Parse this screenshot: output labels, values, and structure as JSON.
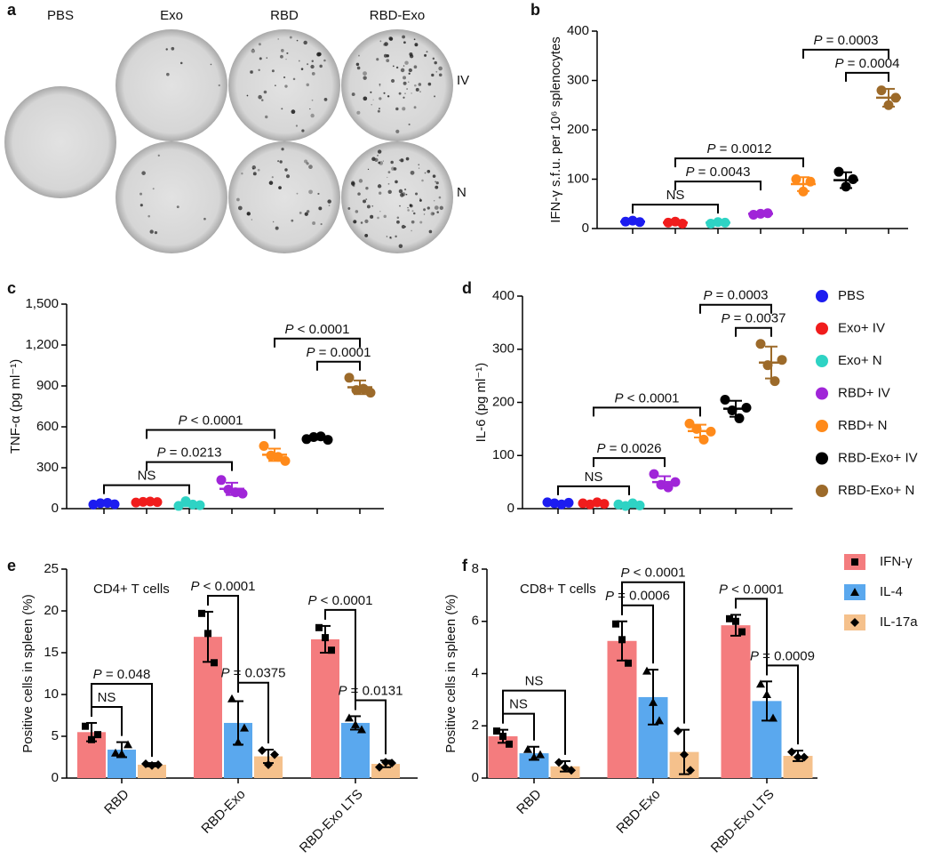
{
  "chart_data": [
    {
      "type": "image-grid",
      "panel_label": "a",
      "columns": [
        "PBS",
        "Exo",
        "RBD",
        "RBD-Exo"
      ],
      "rows": [
        "IV",
        "N"
      ]
    },
    {
      "type": "scatter",
      "panel_label": "b",
      "y_label": "IFN-γ s.f.u. per 10⁶ splenocytes",
      "ylim": [
        0,
        400
      ],
      "yticks": [
        0,
        100,
        200,
        300,
        400
      ],
      "series": [
        {
          "values": [
            14,
            16,
            13
          ],
          "mean": 14,
          "error": 2
        },
        {
          "values": [
            12,
            14,
            10
          ],
          "mean": 12,
          "error": 2
        },
        {
          "values": [
            10,
            13,
            12
          ],
          "mean": 12,
          "error": 2
        },
        {
          "values": [
            28,
            30,
            31
          ],
          "mean": 30,
          "error": 2
        },
        {
          "values": [
            100,
            75,
            95
          ],
          "mean": 90,
          "error": 14
        },
        {
          "values": [
            115,
            85,
            100
          ],
          "mean": 98,
          "error": 16
        },
        {
          "values": [
            280,
            250,
            265
          ],
          "mean": 265,
          "error": 18
        }
      ],
      "comparisons": [
        {
          "groups": [
            0,
            2
          ],
          "label": "NS"
        },
        {
          "groups": [
            1,
            3
          ],
          "label": "P = 0.0043"
        },
        {
          "groups": [
            1,
            4
          ],
          "label": "P = 0.0012"
        },
        {
          "groups": [
            4,
            6
          ],
          "label": "P = 0.0003"
        },
        {
          "groups": [
            5,
            6
          ],
          "label": "P = 0.0004"
        }
      ]
    },
    {
      "type": "scatter",
      "panel_label": "c",
      "y_label": "TNF-α (pg ml⁻¹)",
      "ylim": [
        0,
        1500
      ],
      "yticks": [
        0,
        300,
        600,
        900,
        {
          "value": 1200,
          "label": "1,200"
        },
        {
          "value": 1500,
          "label": "1,500"
        }
      ],
      "series": [
        {
          "values": [
            30,
            40,
            42,
            32
          ],
          "mean": 37,
          "error": 6
        },
        {
          "values": [
            45,
            50,
            52,
            48
          ],
          "mean": 49,
          "error": 3
        },
        {
          "values": [
            20,
            55,
            30,
            25
          ],
          "mean": 33,
          "error": 15
        },
        {
          "values": [
            210,
            140,
            120,
            110
          ],
          "mean": 145,
          "error": 45
        },
        {
          "values": [
            460,
            390,
            380,
            350
          ],
          "mean": 395,
          "error": 45
        },
        {
          "values": [
            510,
            525,
            530,
            505
          ],
          "mean": 518,
          "error": 12
        },
        {
          "values": [
            960,
            870,
            880,
            850
          ],
          "mean": 890,
          "error": 50
        }
      ],
      "comparisons": [
        {
          "groups": [
            0,
            2
          ],
          "label": "NS"
        },
        {
          "groups": [
            1,
            3
          ],
          "label": "P = 0.0213"
        },
        {
          "groups": [
            1,
            4
          ],
          "label": "P < 0.0001"
        },
        {
          "groups": [
            4,
            6
          ],
          "label": "P < 0.0001"
        },
        {
          "groups": [
            5,
            6
          ],
          "label": "P = 0.0001"
        }
      ]
    },
    {
      "type": "scatter",
      "panel_label": "d",
      "y_label": "IL-6 (pg ml⁻¹)",
      "ylim": [
        0,
        400
      ],
      "yticks": [
        0,
        100,
        200,
        300,
        400
      ],
      "series": [
        {
          "values": [
            12,
            10,
            8,
            11
          ],
          "mean": 10,
          "error": 2
        },
        {
          "values": [
            10,
            8,
            12,
            9
          ],
          "mean": 10,
          "error": 2
        },
        {
          "values": [
            8,
            5,
            10,
            6
          ],
          "mean": 8,
          "error": 2
        },
        {
          "values": [
            65,
            45,
            40,
            50
          ],
          "mean": 50,
          "error": 11
        },
        {
          "values": [
            160,
            150,
            130,
            145
          ],
          "mean": 146,
          "error": 12
        },
        {
          "values": [
            205,
            185,
            170,
            190
          ],
          "mean": 188,
          "error": 15
        },
        {
          "values": [
            310,
            270,
            240,
            280
          ],
          "mean": 275,
          "error": 30
        }
      ],
      "comparisons": [
        {
          "groups": [
            0,
            2
          ],
          "label": "NS"
        },
        {
          "groups": [
            1,
            3
          ],
          "label": "P = 0.0026"
        },
        {
          "groups": [
            1,
            4
          ],
          "label": "P < 0.0001"
        },
        {
          "groups": [
            4,
            6
          ],
          "label": "P = 0.0003"
        },
        {
          "groups": [
            5,
            6
          ],
          "label": "P = 0.0037"
        }
      ]
    },
    {
      "type": "bar",
      "panel_label": "e",
      "title": "CD4+ T cells",
      "y_label": "Positive cells in spleen (%)",
      "categories": [
        "RBD",
        "RBD-Exo",
        "RBD-Exo LTS"
      ],
      "ylim": [
        0,
        25
      ],
      "yticks": [
        0,
        5,
        10,
        15,
        20,
        25
      ],
      "series": [
        {
          "values": [
            5.5,
            16.9,
            16.6
          ],
          "errors": [
            1.1,
            3.0,
            1.6
          ],
          "points": [
            [
              6.2,
              4.6,
              5.2
            ],
            [
              19.7,
              17.3,
              13.8
            ],
            [
              18.0,
              16.8,
              15.3
            ]
          ]
        },
        {
          "values": [
            3.4,
            6.6,
            6.6
          ],
          "errors": [
            0.9,
            2.6,
            0.8
          ],
          "points": [
            [
              3.0,
              2.9,
              4.0
            ],
            [
              9.5,
              4.3,
              6.0
            ],
            [
              7.2,
              6.4,
              5.8
            ]
          ]
        },
        {
          "values": [
            1.6,
            2.6,
            1.7
          ],
          "errors": [
            0.2,
            0.8,
            0.4
          ],
          "points": [
            [
              1.7,
              1.5,
              1.6
            ],
            [
              3.3,
              1.6,
              2.8
            ],
            [
              1.3,
              1.9,
              1.8
            ]
          ]
        }
      ],
      "comparisons": [
        {
          "category": 0,
          "series": [
            0,
            1
          ],
          "label": "NS"
        },
        {
          "category": 0,
          "series": [
            0,
            2
          ],
          "label": "P = 0.048"
        },
        {
          "category": 1,
          "series": [
            0,
            1
          ],
          "label": "P < 0.0001"
        },
        {
          "category": 1,
          "series": [
            1,
            2
          ],
          "label": "P = 0.0375"
        },
        {
          "category": 2,
          "series": [
            0,
            1
          ],
          "label": "P < 0.0001"
        },
        {
          "category": 2,
          "series": [
            1,
            2
          ],
          "label": "P = 0.0131"
        }
      ]
    },
    {
      "type": "bar",
      "panel_label": "f",
      "title": "CD8+ T cells",
      "y_label": "Positive cells in spleen (%)",
      "categories": [
        "RBD",
        "RBD-Exo",
        "RBD-Exo LTS"
      ],
      "ylim": [
        0,
        8
      ],
      "yticks": [
        0,
        2,
        4,
        6,
        8
      ],
      "series": [
        {
          "values": [
            1.6,
            5.25,
            5.85
          ],
          "errors": [
            0.25,
            0.75,
            0.4
          ],
          "points": [
            [
              1.8,
              1.6,
              1.3
            ],
            [
              5.9,
              5.3,
              4.4
            ],
            [
              6.1,
              6.0,
              5.6
            ]
          ]
        },
        {
          "values": [
            0.95,
            3.1,
            2.95
          ],
          "errors": [
            0.25,
            1.05,
            0.75
          ],
          "points": [
            [
              1.1,
              0.8,
              0.9
            ],
            [
              4.1,
              2.9,
              2.2
            ],
            [
              3.6,
              3.2,
              2.3
            ]
          ]
        },
        {
          "values": [
            0.45,
            1.0,
            0.85
          ],
          "errors": [
            0.2,
            0.85,
            0.2
          ],
          "points": [
            [
              0.6,
              0.4,
              0.3
            ],
            [
              1.8,
              0.9,
              0.3
            ],
            [
              1.0,
              0.8,
              0.8
            ]
          ]
        }
      ],
      "comparisons": [
        {
          "category": 0,
          "series": [
            0,
            1
          ],
          "label": "NS"
        },
        {
          "category": 0,
          "series": [
            0,
            2
          ],
          "label": "NS"
        },
        {
          "category": 1,
          "series": [
            0,
            1
          ],
          "label": "P = 0.0006"
        },
        {
          "category": 1,
          "series": [
            0,
            2
          ],
          "label": "P < 0.0001"
        },
        {
          "category": 2,
          "series": [
            0,
            1
          ],
          "label": "P < 0.0001"
        },
        {
          "category": 2,
          "series": [
            1,
            2
          ],
          "label": "P = 0.0009"
        }
      ]
    }
  ],
  "group_legend": [
    {
      "name": "PBS",
      "color": "#1c1cf0"
    },
    {
      "name": "Exo+ IV",
      "color": "#f01c1c"
    },
    {
      "name": "Exo+ N",
      "color": "#2ed3c4"
    },
    {
      "name": "RBD+ IV",
      "color": "#a025d8"
    },
    {
      "name": "RBD+ N",
      "color": "#ff8a1a"
    },
    {
      "name": "RBD-Exo+ IV",
      "color": "#000000"
    },
    {
      "name": "RBD-Exo+ N",
      "color": "#9c6a2a"
    }
  ],
  "bar_legend": [
    {
      "name": "IFN-γ",
      "color": "#f47c7e",
      "marker": "square"
    },
    {
      "name": "IL-4",
      "color": "#5aa8ee",
      "marker": "triangle"
    },
    {
      "name": "IL-17a",
      "color": "#f5c18c",
      "marker": "diamond"
    }
  ]
}
